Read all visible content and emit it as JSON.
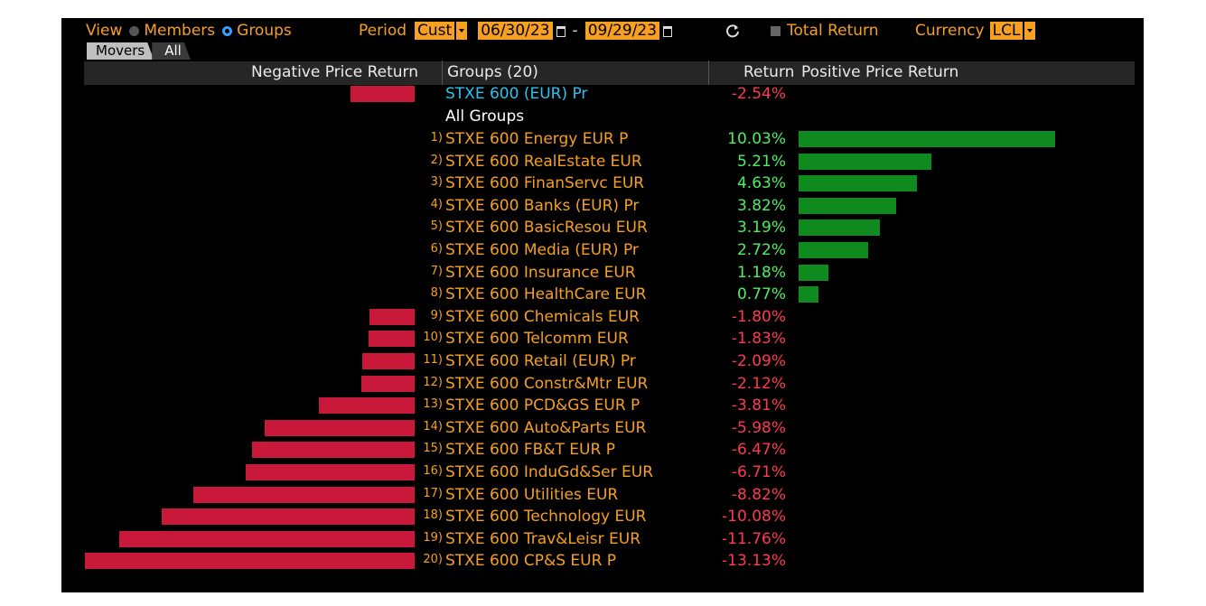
{
  "toolbar": {
    "view_label": "View",
    "members_label": "Members",
    "groups_label": "Groups",
    "period_label": "Period",
    "period_value": "Cust",
    "start_date": "06/30/23",
    "date_separator": "-",
    "end_date": "09/29/23",
    "total_return_label": "Total Return",
    "currency_label": "Currency",
    "currency_value": "LCL"
  },
  "tabs": [
    "Movers",
    "All"
  ],
  "header": {
    "negative": "Negative Price Return",
    "groups": "Groups (20)",
    "return": "Return",
    "positive": "Positive Price Return"
  },
  "index_row": {
    "name": "STXE 600 (EUR) Pr",
    "value_text": "-2.54%",
    "value": -2.54
  },
  "section_label": "All Groups",
  "rows": [
    {
      "num": "1)",
      "name": "STXE 600 Energy EUR P",
      "value_text": "10.03%",
      "value": 10.03
    },
    {
      "num": "2)",
      "name": "STXE 600 RealEstate EUR",
      "value_text": "5.21%",
      "value": 5.21
    },
    {
      "num": "3)",
      "name": "STXE 600 FinanServc EUR",
      "value_text": "4.63%",
      "value": 4.63
    },
    {
      "num": "4)",
      "name": "STXE 600 Banks (EUR) Pr",
      "value_text": "3.82%",
      "value": 3.82
    },
    {
      "num": "5)",
      "name": "STXE 600 BasicResou EUR",
      "value_text": "3.19%",
      "value": 3.19
    },
    {
      "num": "6)",
      "name": "STXE 600 Media (EUR) Pr",
      "value_text": "2.72%",
      "value": 2.72
    },
    {
      "num": "7)",
      "name": "STXE 600 Insurance EUR",
      "value_text": "1.18%",
      "value": 1.18
    },
    {
      "num": "8)",
      "name": "STXE 600 HealthCare EUR",
      "value_text": "0.77%",
      "value": 0.77
    },
    {
      "num": "9)",
      "name": "STXE 600 Chemicals EUR",
      "value_text": "-1.80%",
      "value": -1.8
    },
    {
      "num": "10)",
      "name": "STXE 600 Telcomm EUR",
      "value_text": "-1.83%",
      "value": -1.83
    },
    {
      "num": "11)",
      "name": "STXE 600 Retail (EUR) Pr",
      "value_text": "-2.09%",
      "value": -2.09
    },
    {
      "num": "12)",
      "name": "STXE 600 Constr&Mtr EUR",
      "value_text": "-2.12%",
      "value": -2.12
    },
    {
      "num": "13)",
      "name": "STXE 600 PCD&GS EUR P",
      "value_text": "-3.81%",
      "value": -3.81
    },
    {
      "num": "14)",
      "name": "STXE 600 Auto&Parts EUR",
      "value_text": "-5.98%",
      "value": -5.98
    },
    {
      "num": "15)",
      "name": "STXE 600 FB&T EUR P",
      "value_text": "-6.47%",
      "value": -6.47
    },
    {
      "num": "16)",
      "name": "STXE 600 InduGd&Ser EUR",
      "value_text": "-6.71%",
      "value": -6.71
    },
    {
      "num": "17)",
      "name": "STXE 600 Utilities EUR",
      "value_text": "-8.82%",
      "value": -8.82
    },
    {
      "num": "18)",
      "name": "STXE 600 Technology EUR",
      "value_text": "-10.08%",
      "value": -10.08
    },
    {
      "num": "19)",
      "name": "STXE 600 Trav&Leisr EUR",
      "value_text": "-11.76%",
      "value": -11.76
    },
    {
      "num": "20)",
      "name": "STXE 600 CP&S EUR P",
      "value_text": "-13.13%",
      "value": -13.13
    }
  ],
  "colors": {
    "background": "#000000",
    "label_orange": "#f7a020",
    "index_cyan": "#25c4f2",
    "negative_text": "#ff3a4f",
    "positive_text": "#4cf060",
    "negative_bar": "#c8193a",
    "positive_bar": "#0e8a1f"
  },
  "icons": [
    "radio-off-icon",
    "radio-on-icon",
    "dropdown-arrow-icon",
    "calendar-icon",
    "refresh-icon",
    "checkbox-icon"
  ]
}
